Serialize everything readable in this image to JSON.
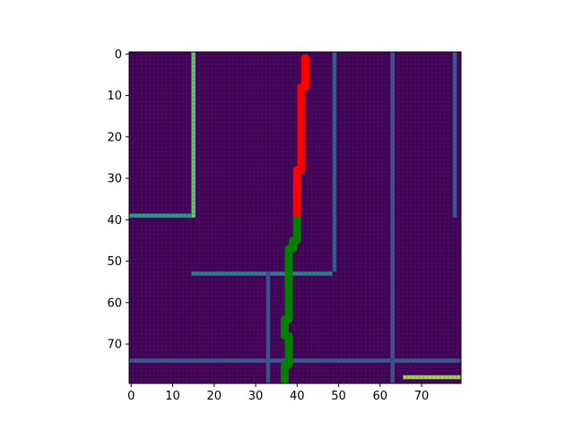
{
  "chart_data": {
    "type": "heatmap",
    "title": "",
    "xlabel": "",
    "ylabel": "",
    "xlim": [
      -0.5,
      79.5
    ],
    "ylim": [
      79.5,
      -0.5
    ],
    "y_inverted": true,
    "grid": false,
    "x_ticks": [
      0,
      10,
      20,
      30,
      40,
      50,
      60,
      70
    ],
    "y_ticks": [
      0,
      10,
      20,
      30,
      40,
      50,
      60,
      70
    ],
    "x_tick_labels": [
      "0",
      "10",
      "20",
      "30",
      "40",
      "50",
      "60",
      "70"
    ],
    "y_tick_labels": [
      "0",
      "10",
      "20",
      "30",
      "40",
      "50",
      "60",
      "70"
    ],
    "colormap": "viridis",
    "background_color": "#440154",
    "image_features": [
      {
        "kind": "vline",
        "x": 15,
        "y0": 0,
        "y1": 40,
        "value": 0.75
      },
      {
        "kind": "hline",
        "y": 39,
        "x0": 0,
        "x1": 15,
        "value": 0.55
      },
      {
        "kind": "hline",
        "y": 53,
        "x0": 15,
        "x1": 49,
        "value": 0.45
      },
      {
        "kind": "vline",
        "x": 49,
        "y0": 0,
        "y1": 53,
        "value": 0.3
      },
      {
        "kind": "vline",
        "x": 33,
        "y0": 53,
        "y1": 80,
        "value": 0.25
      },
      {
        "kind": "hline",
        "y": 74,
        "x0": 0,
        "x1": 80,
        "value": 0.28
      },
      {
        "kind": "hline",
        "y": 78,
        "x0": 66,
        "x1": 80,
        "value": 0.85
      },
      {
        "kind": "vline",
        "x": 78,
        "y0": 0,
        "y1": 40,
        "value": 0.3
      },
      {
        "kind": "vline",
        "x": 63,
        "y0": 0,
        "y1": 80,
        "value": 0.25
      }
    ],
    "series": [
      {
        "color": "#ff0000",
        "x": [
          42,
          42,
          41,
          41,
          40,
          40
        ],
        "y": [
          1,
          8,
          8,
          28,
          28,
          40
        ]
      },
      {
        "color": "#008000",
        "x": [
          40,
          40,
          39,
          39,
          38,
          38,
          37,
          37,
          38,
          38,
          37,
          37
        ],
        "y": [
          40,
          45,
          45,
          47,
          47,
          64,
          64,
          68,
          68,
          75,
          75,
          79.5
        ]
      }
    ]
  }
}
